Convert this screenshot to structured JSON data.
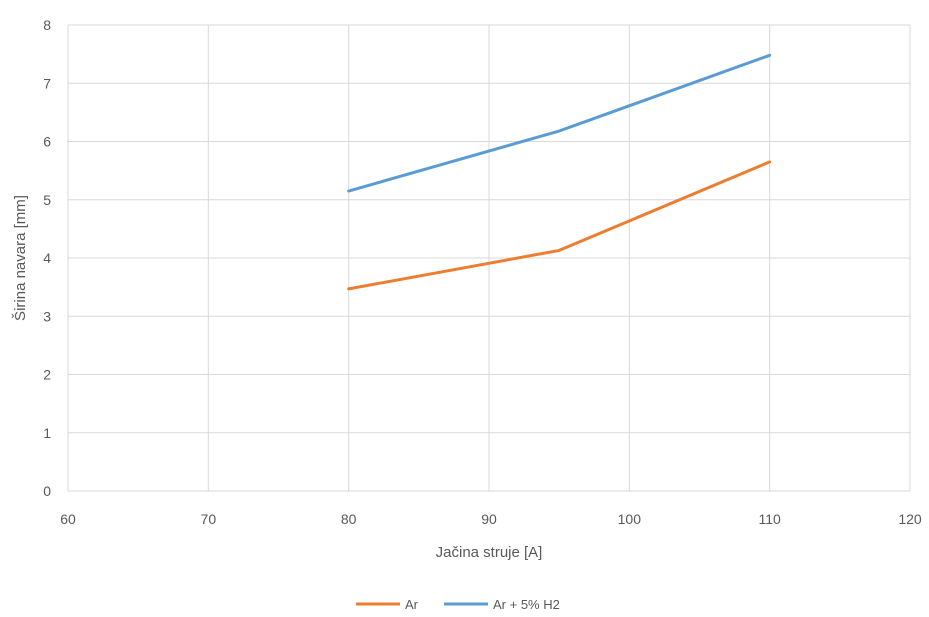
{
  "chart_data": {
    "type": "line",
    "title": "",
    "xlabel": "Jačina struje [A]",
    "ylabel": "Širina navara [mm]",
    "xlim": [
      60,
      120
    ],
    "ylim": [
      0,
      8
    ],
    "x_ticks": [
      "60",
      "70",
      "80",
      "90",
      "100",
      "110",
      "120"
    ],
    "y_ticks": [
      "0",
      "1",
      "2",
      "3",
      "4",
      "5",
      "6",
      "7",
      "8"
    ],
    "grid": true,
    "legend_position": "bottom",
    "series": [
      {
        "name": "Ar",
        "color": "#ed7d31",
        "points": [
          [
            80,
            3.47
          ],
          [
            95,
            4.13
          ],
          [
            110,
            5.65
          ]
        ]
      },
      {
        "name": "Ar + 5% H2",
        "color": "#5b9bd5",
        "points": [
          [
            80,
            5.15
          ],
          [
            95,
            6.18
          ],
          [
            110,
            7.48
          ]
        ]
      }
    ]
  }
}
